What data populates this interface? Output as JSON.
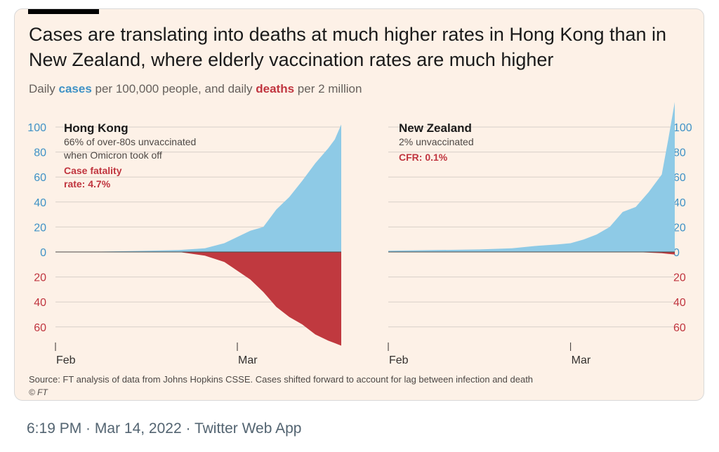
{
  "title": "Cases are translating into deaths at much higher rates in Hong Kong than in New Zealand, where elderly vaccination rates are much higher",
  "subtitle": {
    "part1": "Daily ",
    "cases_word": "cases",
    "part2": " per 100,000 people, and daily ",
    "deaths_word": "deaths",
    "part3": " per 2 million"
  },
  "source": "Source: FT analysis of data from Johns Hopkins CSSE. Cases shifted forward to account for lag between infection and death",
  "copyright": "© FT",
  "footer": {
    "time": "6:19 PM",
    "sep1": " · ",
    "date": "Mar 14, 2022",
    "sep2": " · ",
    "app": "Twitter Web App"
  },
  "colors": {
    "cases": "#8ecae6",
    "deaths": "#c0393f",
    "background": "#fdf1e7"
  },
  "chart_data": [
    {
      "type": "area",
      "title": "Hong Kong",
      "annotation": [
        "66% of over-80s unvaccinated",
        "when Omicron took off"
      ],
      "cfr_label": [
        "Case fatality",
        "rate: 4.7%"
      ],
      "y_ticks_top": [
        "100",
        "80",
        "60",
        "40",
        "20",
        "0"
      ],
      "y_ticks_bottom": [
        "20",
        "40",
        "60"
      ],
      "x_ticks": [
        "Feb",
        "Mar"
      ],
      "ylim": [
        -75,
        100
      ],
      "x": [
        "Feb 1",
        "Feb 8",
        "Feb 15",
        "Feb 20",
        "Feb 24",
        "Feb 27",
        "Mar 1",
        "Mar 3",
        "Mar 5",
        "Mar 7",
        "Mar 9",
        "Mar 11",
        "Mar 13",
        "Mar 15",
        "Mar 16",
        "Mar 17"
      ],
      "series": [
        {
          "name": "cases",
          "values": [
            0,
            0.3,
            1,
            1.5,
            3,
            7,
            12,
            17,
            20,
            34,
            44,
            57,
            71,
            83,
            90,
            102
          ]
        },
        {
          "name": "deaths",
          "values": [
            0,
            0,
            0,
            0,
            -3,
            -8,
            -15,
            -22,
            -32,
            -44,
            -52,
            -58,
            -66,
            -71,
            -73,
            -75
          ]
        }
      ]
    },
    {
      "type": "area",
      "title": "New Zealand",
      "annotation": [
        "2% unvaccinated"
      ],
      "cfr_label": [
        "CFR: 0.1%"
      ],
      "y_ticks_top": [
        "100",
        "80",
        "60",
        "40",
        "20",
        "0"
      ],
      "y_ticks_bottom": [
        "20",
        "40",
        "60"
      ],
      "x_ticks": [
        "Feb",
        "Mar"
      ],
      "ylim": [
        -75,
        100
      ],
      "x": [
        "Feb 1",
        "Feb 8",
        "Feb 15",
        "Feb 20",
        "Feb 24",
        "Feb 27",
        "Mar 1",
        "Mar 3",
        "Mar 5",
        "Mar 7",
        "Mar 9",
        "Mar 11",
        "Mar 13",
        "Mar 15",
        "Mar 16",
        "Mar 17"
      ],
      "series": [
        {
          "name": "cases",
          "values": [
            1,
            1.5,
            2,
            3,
            5,
            6,
            7,
            10,
            14,
            20,
            32,
            36,
            48,
            62,
            90,
            120
          ]
        },
        {
          "name": "deaths",
          "values": [
            0,
            0,
            0,
            0,
            0,
            0,
            0,
            0,
            0,
            0,
            0,
            0,
            -0.5,
            -1,
            -1.5,
            -2
          ]
        }
      ]
    }
  ]
}
